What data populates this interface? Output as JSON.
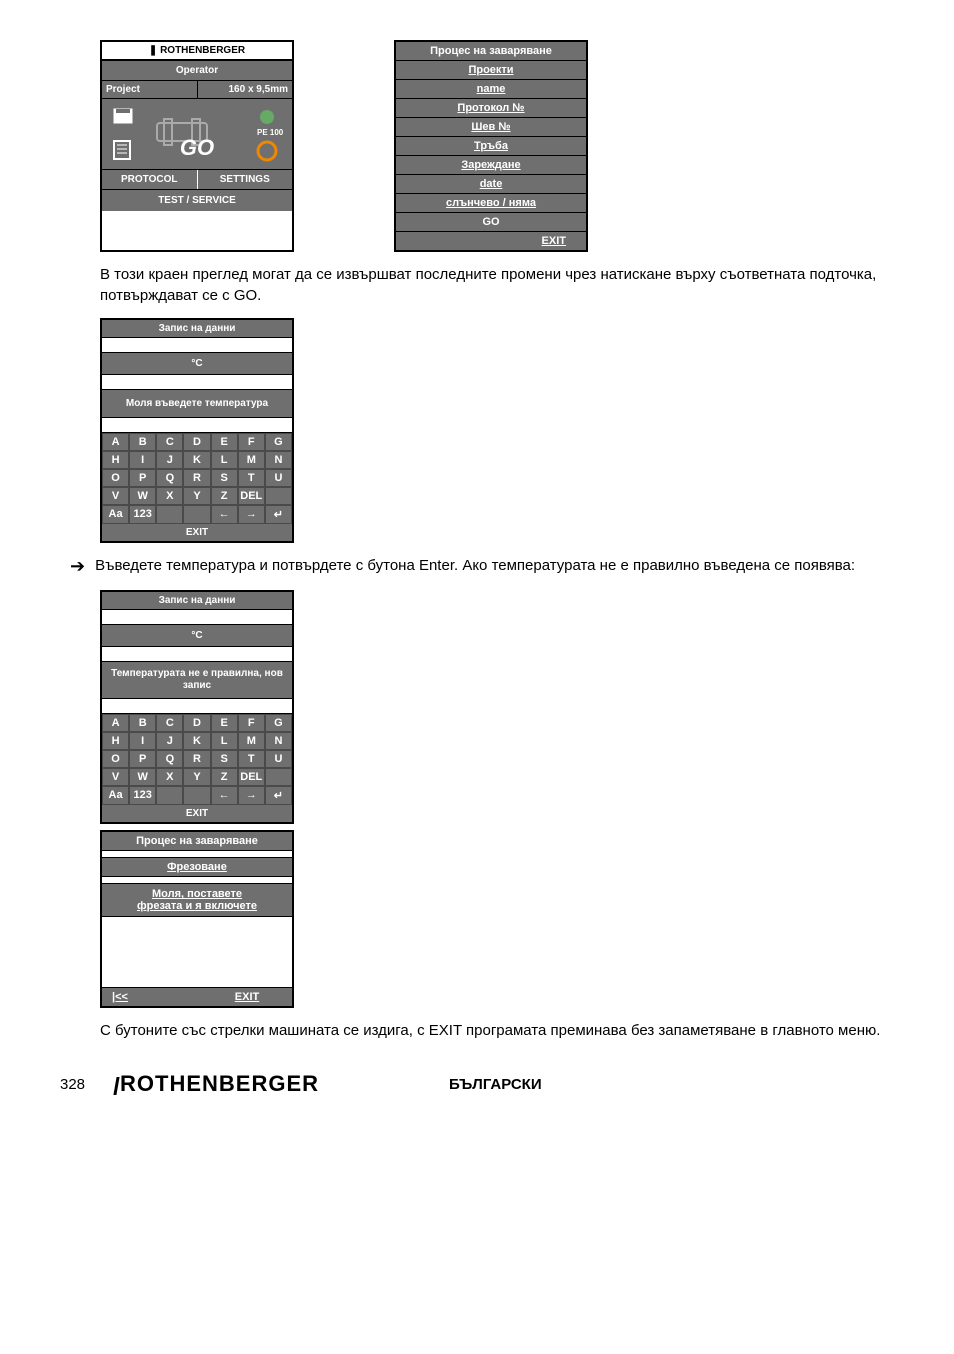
{
  "operator_panel": {
    "brand": "ROTHENBERGER",
    "operator": "Operator",
    "project_label": "Project",
    "project_value": "160 x 9,5mm",
    "pe_label": "PE 100",
    "go": "GO",
    "protocol": "PROTOCOL",
    "settings": "SETTINGS",
    "test_service": "TEST / SERVICE"
  },
  "right_process_panel": {
    "title": "Процес на заваряване",
    "items": [
      "Проекти",
      "name",
      "Протокол №",
      "Шев №",
      "Тръба",
      "Зареждане",
      "date",
      "слънчево / няма"
    ],
    "go": "GO",
    "exit": "EXIT"
  },
  "para1": "В този краен преглед могат да се извършват последните промени чрез натискане върху съответната подточка, потвърждават се с GO.",
  "kbd1": {
    "title": "Запис на данни",
    "unit": "°C",
    "prompt": "Моля въведете температура",
    "rows": [
      [
        "A",
        "B",
        "C",
        "D",
        "E",
        "F",
        "G"
      ],
      [
        "H",
        "I",
        "J",
        "K",
        "L",
        "M",
        "N"
      ],
      [
        "O",
        "P",
        "Q",
        "R",
        "S",
        "T",
        "U"
      ],
      [
        "V",
        "W",
        "X",
        "Y",
        "Z",
        "DEL",
        ""
      ],
      [
        "Aa",
        "123",
        "",
        "",
        "←",
        "→",
        "↵"
      ]
    ],
    "exit": "EXIT"
  },
  "bullet": "Въведете температура и потвърдете с бутона Enter. Ако температурата не е правилно въведена се появява:",
  "kbd2": {
    "title": "Запис на данни",
    "unit": "°C",
    "prompt": "Температурата не е правилна, нов запис",
    "rows": [
      [
        "A",
        "B",
        "C",
        "D",
        "E",
        "F",
        "G"
      ],
      [
        "H",
        "I",
        "J",
        "K",
        "L",
        "M",
        "N"
      ],
      [
        "O",
        "P",
        "Q",
        "R",
        "S",
        "T",
        "U"
      ],
      [
        "V",
        "W",
        "X",
        "Y",
        "Z",
        "DEL",
        ""
      ],
      [
        "Aa",
        "123",
        "",
        "",
        "←",
        "→",
        "↵"
      ]
    ],
    "exit": "EXIT"
  },
  "proc_panel": {
    "title": "Процес на заваряване",
    "sub": "Фрезоване",
    "msg1": "Моля, поставете",
    "msg2": "фрезата и я включете",
    "back": "|<<",
    "exit": "EXIT"
  },
  "para2": "С бутоните със стрелки машината се издига, с EXIT програмата преминава без запаметяване в главното меню.",
  "footer": {
    "page": "328",
    "brand": "ROTHENBERGER",
    "lang": "БЪЛГАРСКИ"
  },
  "colors": {
    "panel_bg": "#6f6f6f",
    "text_white": "#ffffff",
    "border": "#000000"
  }
}
